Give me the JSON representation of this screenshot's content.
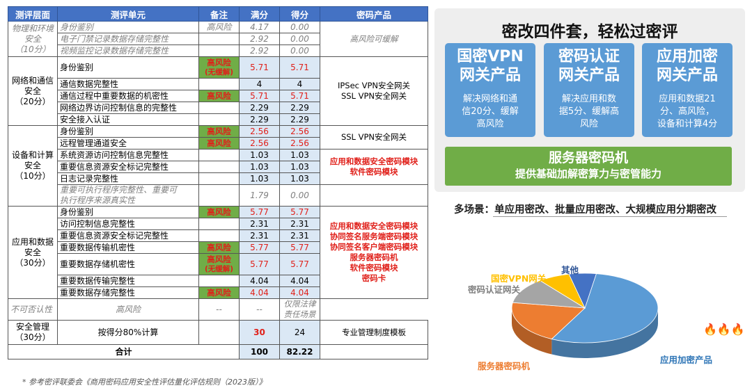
{
  "table": {
    "headers": [
      "测评层面",
      "测评单元",
      "备注",
      "满分",
      "得分",
      "密码产品"
    ],
    "phys": {
      "layer": [
        "物理和环境",
        "安全",
        "（10分）"
      ],
      "rows": [
        {
          "unit": "身份鉴别",
          "note": "高风险",
          "full": "4.17",
          "score": "0.00"
        },
        {
          "unit": "电子门禁记录数据存储完整性",
          "note": "",
          "full": "2.92",
          "score": "0.00"
        },
        {
          "unit": "视频监控记录数据存储完整性",
          "note": "",
          "full": "2.92",
          "score": "0.00"
        }
      ],
      "product": "高风险可缓解"
    },
    "net": {
      "layer": [
        "网络和通信",
        "安全",
        "（20分）"
      ],
      "rows": [
        {
          "unit": "身份鉴别",
          "note": "高风险",
          "note_sub": "(无缓解)",
          "full": "5.71",
          "score": "5.71"
        },
        {
          "unit": "通信数据完整性",
          "note": "",
          "full": "4",
          "score": "4"
        },
        {
          "unit": "通信过程中重要数据的机密性",
          "note": "高风险",
          "full": "5.71",
          "score": "5.71"
        },
        {
          "unit": "网络边界访问控制信息的完整性",
          "note": "",
          "full": "2.29",
          "score": "2.29"
        },
        {
          "unit": "安全接入认证",
          "note": "",
          "full": "2.29",
          "score": "2.29"
        }
      ],
      "product": [
        "IPSec VPN安全网关",
        "SSL VPN安全网关"
      ]
    },
    "dev": {
      "layer": [
        "设备和计算",
        "安全",
        "（10分）"
      ],
      "rows": [
        {
          "unit": "身份鉴别",
          "note": "高风险",
          "full": "2.56",
          "score": "2.56"
        },
        {
          "unit": "远程管理通道安全",
          "note": "高风险",
          "full": "2.56",
          "score": "2.56"
        },
        {
          "unit": "系统资源访问控制信息完整性",
          "note": "",
          "full": "1.03",
          "score": "1.03"
        },
        {
          "unit": "重要信息资源安全标记完整性",
          "note": "",
          "full": "1.03",
          "score": "1.03"
        },
        {
          "unit": "日志记录完整性",
          "note": "",
          "full": "1.03",
          "score": "1.03"
        },
        {
          "unit": [
            "重要可执行程序完整性、重要可",
            "执行程序来源真实性"
          ],
          "note": "",
          "full": "1.79",
          "score": "0.00"
        }
      ],
      "product_1": "SSL VPN安全网关",
      "product_2": [
        "应用和数据安全密码模块",
        "软件密码模块"
      ]
    },
    "app": {
      "layer": [
        "应用和数据",
        "安全",
        "（30分）"
      ],
      "rows": [
        {
          "unit": "身份鉴别",
          "note": "高风险",
          "full": "5.77",
          "score": "5.77"
        },
        {
          "unit": "访问控制信息完整性",
          "note": "",
          "full": "2.31",
          "score": "2.31"
        },
        {
          "unit": "重要信息资源安全标记完整性",
          "note": "",
          "full": "2.31",
          "score": "2.31"
        },
        {
          "unit": "重要数据传输机密性",
          "note": "高风险",
          "full": "5.77",
          "score": "5.77"
        },
        {
          "unit": "重要数据存储机密性",
          "note": "高风险",
          "note_sub": "(无缓解)",
          "full": "5.77",
          "score": "5.77"
        },
        {
          "unit": "重要数据传输完整性",
          "note": "",
          "full": "4.04",
          "score": "4.04"
        },
        {
          "unit": "重要数据存储完整性",
          "note": "高风险",
          "full": "4.04",
          "score": "4.04"
        },
        {
          "unit": "不可否认性",
          "note": "高风险",
          "full": "--",
          "score": "--"
        }
      ],
      "product": [
        "应用和数据安全密码模块",
        "协同签名服务端密码模块",
        "协同签名客户端密码模块",
        "服务器密码机",
        "软件密码模块",
        "密码卡"
      ],
      "product_last": "仅限法律责任场景"
    },
    "mgmt": {
      "layer": [
        "安全管理",
        "（30分）"
      ],
      "unit": "按得分80%计算",
      "full": "30",
      "score": "24",
      "product": "专业管理制度模板"
    },
    "total": {
      "label": "合计",
      "full": "100",
      "score": "82.22"
    }
  },
  "footnote": "* 参考密评联委会《商用密码应用安全性评估量化评估规则（2023版）》",
  "panel": {
    "title": "密改四件套，轻松过密评",
    "cards": [
      {
        "title": [
          "国密VPN",
          "网关产品"
        ],
        "desc": [
          "解决网络和通",
          "信20分、缓解",
          "高风险"
        ]
      },
      {
        "title": [
          "密码认证",
          "网关产品"
        ],
        "desc": [
          "解决应用和数",
          "据5分、缓解高",
          "风险"
        ]
      },
      {
        "title": [
          "应用加密",
          "网关产品"
        ],
        "desc": [
          "应用和数据21",
          "分、高风险，",
          "设备和计算4分"
        ]
      }
    ],
    "hsm": {
      "title": "服务器密码机",
      "desc": "提供基础加解密算力与密管能力"
    }
  },
  "scenario": "多场景：单应用密改、批量应用密改、大规模应用分期密改",
  "colors": {
    "header": "#4472C4",
    "risk": "#70AD47",
    "red": "#E0201A",
    "card": "#5B9BD5",
    "hsm": "#70AD47"
  },
  "chart_data": {
    "type": "pie",
    "style": "3d",
    "title": "",
    "slices": [
      {
        "label": "应用加密产品",
        "value": 55,
        "color": "#5B9BD5"
      },
      {
        "label": "服务器密码机",
        "value": 20,
        "color": "#ED7D31"
      },
      {
        "label": "密码认证网关",
        "value": 12,
        "color": "#A5A5A5"
      },
      {
        "label": "国密VPN网关",
        "value": 7,
        "color": "#FFC000"
      },
      {
        "label": "其他",
        "value": 6,
        "color": "#4472C4"
      }
    ],
    "decoration": "🔥🔥🔥"
  }
}
